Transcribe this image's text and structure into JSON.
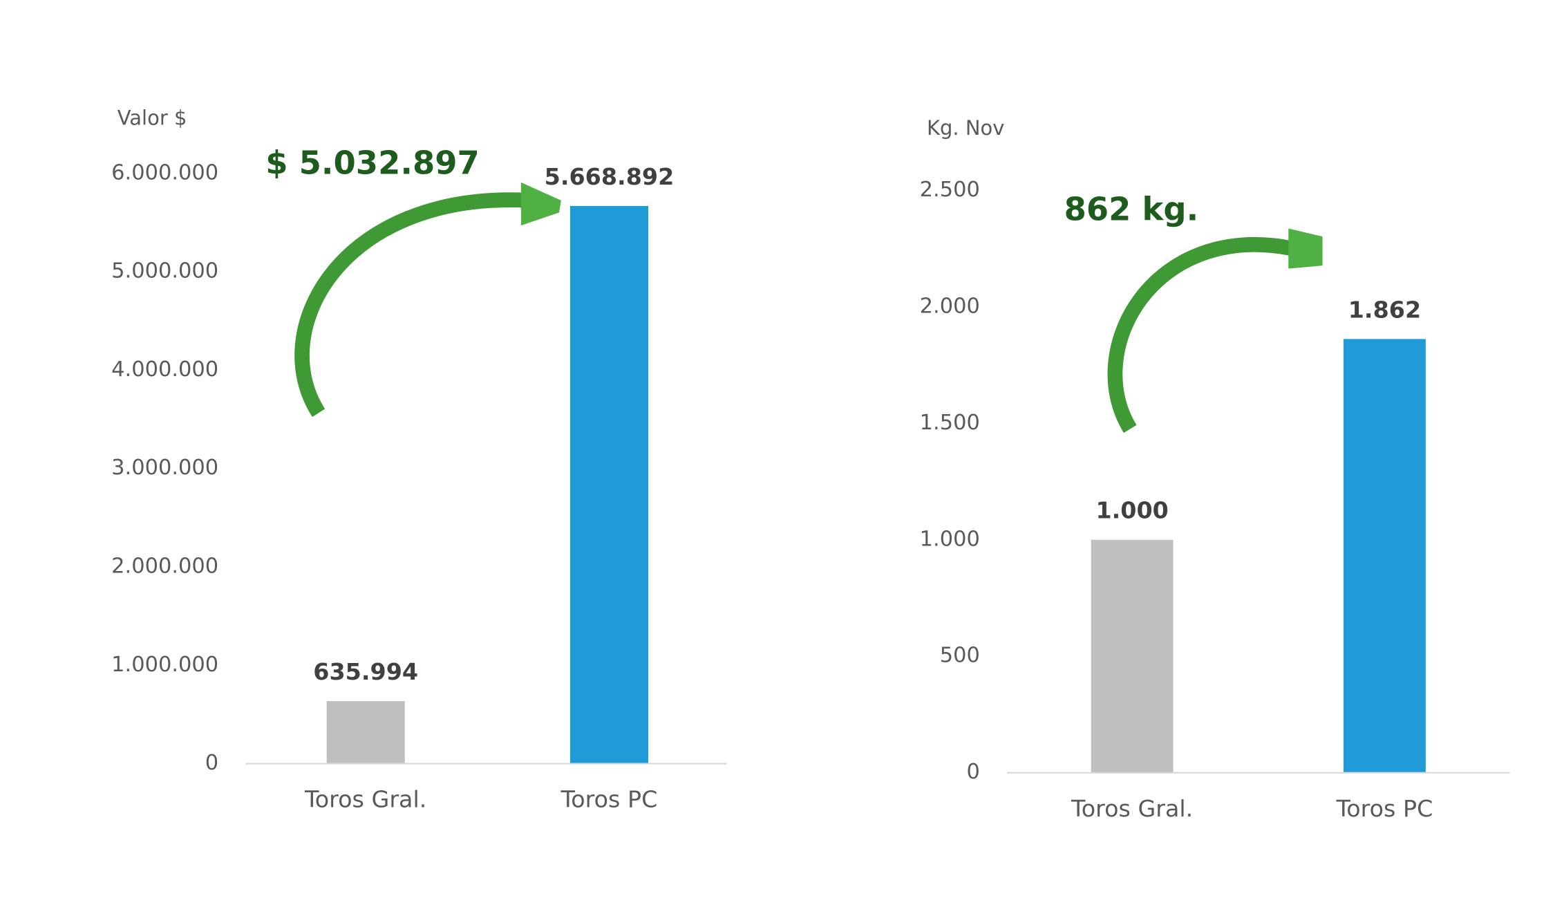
{
  "chart_data": [
    {
      "type": "bar",
      "y_label": "Valor $",
      "annotation": "$ 5.032.897",
      "categories": [
        "Toros Gral.",
        "Toros PC"
      ],
      "values": [
        635994,
        5668892
      ],
      "value_labels": [
        "635.994",
        "5.668.892"
      ],
      "colors": [
        "#bfbfbf",
        "#1f9bd7"
      ],
      "ylim": [
        0,
        6000000
      ],
      "yticks": [
        0,
        {
          "value": 1000000,
          "label": "1.000.000"
        },
        {
          "value": 2000000,
          "label": "2.000.000"
        },
        {
          "value": 3000000,
          "label": "3.000.000"
        },
        {
          "value": 4000000,
          "label": "4.000.000"
        },
        {
          "value": 5000000,
          "label": "5.000.000"
        },
        {
          "value": 6000000,
          "label": "6.000.000"
        }
      ]
    },
    {
      "type": "bar",
      "y_label": "Kg. Nov",
      "annotation": "862 kg.",
      "categories": [
        "Toros Gral.",
        "Toros PC"
      ],
      "values": [
        1000,
        1862
      ],
      "value_labels": [
        "1.000",
        "1.862"
      ],
      "colors": [
        "#bfbfbf",
        "#1f9bd7"
      ],
      "ylim": [
        0,
        2500
      ],
      "yticks": [
        0,
        500,
        {
          "value": 1000,
          "label": "1.000"
        },
        {
          "value": 1500,
          "label": "1.500"
        },
        {
          "value": 2000,
          "label": "2.000"
        },
        {
          "value": 2500,
          "label": "2.500"
        }
      ]
    }
  ]
}
